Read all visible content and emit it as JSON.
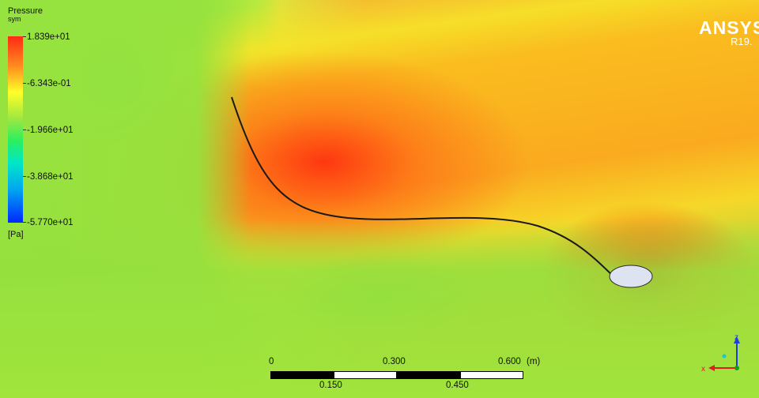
{
  "legend": {
    "title": "Pressure",
    "subtitle": "sym",
    "values": [
      "1.839e+01",
      "-6.343e-01",
      "-1.966e+01",
      "-3.868e+01",
      "-5.770e+01"
    ],
    "unit": "[Pa]"
  },
  "logo": {
    "brand": "ANSYS",
    "version": "R19."
  },
  "scale": {
    "top_labels": [
      "0",
      "0.300",
      "0.600"
    ],
    "unit": "(m)",
    "bottom_labels": [
      "0.150",
      "0.450"
    ]
  },
  "triad": {
    "z": "z",
    "x": "x"
  },
  "colors": {
    "high": "#ff2a12",
    "mid": "#9fe840",
    "low": "#0028ff",
    "wall": "#1a1a1a",
    "cylinder": "#dde3f0"
  }
}
